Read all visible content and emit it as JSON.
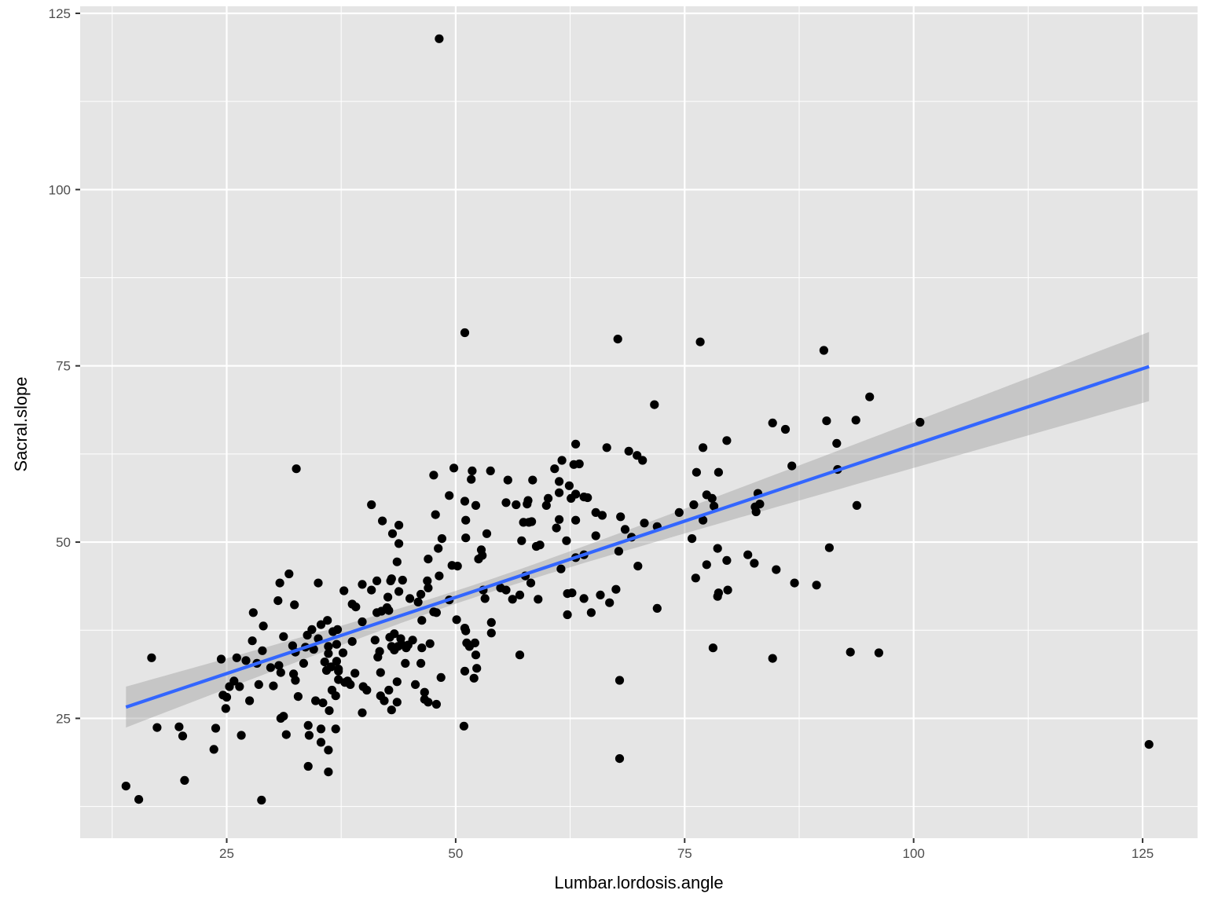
{
  "chart_data": {
    "type": "scatter",
    "title": "",
    "xlabel": "Lumbar.lordosis.angle",
    "ylabel": "Sacral.slope",
    "xlim": [
      9,
      131
    ],
    "ylim": [
      8,
      126
    ],
    "x_ticks": [
      25,
      50,
      75,
      100,
      125
    ],
    "y_ticks": [
      25,
      50,
      75,
      100,
      125
    ],
    "x_tick_labels": [
      "25",
      "50",
      "75",
      "100",
      "125"
    ],
    "y_tick_labels": [
      "25",
      "50",
      "75",
      "100",
      "125"
    ],
    "grid": true,
    "legend": "none",
    "colors": {
      "panel": "#e5e5e5",
      "grid": "#ffffff",
      "point": "#000000",
      "line": "#3366ff",
      "ribbon": "#999999"
    },
    "trend": {
      "method": "linear",
      "x_range": [
        14,
        125.7
      ],
      "y_at_start": 26.6,
      "y_at_end": 74.9,
      "ci_halfwidth_at_start": 2.9,
      "ci_halfwidth_at_end": 4.9,
      "ci_halfwidth_at_center": 0.9,
      "center_x": 52
    },
    "points": [
      [
        48.2,
        121.4
      ],
      [
        51.0,
        79.7
      ],
      [
        67.7,
        78.8
      ],
      [
        76.7,
        78.4
      ],
      [
        90.2,
        77.2
      ],
      [
        95.2,
        70.6
      ],
      [
        71.7,
        69.5
      ],
      [
        93.7,
        67.3
      ],
      [
        90.5,
        67.2
      ],
      [
        100.7,
        67.0
      ],
      [
        84.6,
        66.9
      ],
      [
        86.0,
        66.0
      ],
      [
        91.6,
        64.0
      ],
      [
        79.6,
        64.4
      ],
      [
        63.1,
        63.9
      ],
      [
        66.5,
        63.4
      ],
      [
        77.0,
        63.4
      ],
      [
        68.9,
        62.9
      ],
      [
        69.8,
        62.3
      ],
      [
        61.6,
        61.6
      ],
      [
        70.4,
        61.6
      ],
      [
        63.5,
        61.1
      ],
      [
        62.9,
        61.0
      ],
      [
        86.7,
        60.8
      ],
      [
        32.6,
        60.4
      ],
      [
        49.8,
        60.5
      ],
      [
        60.8,
        60.4
      ],
      [
        91.7,
        60.3
      ],
      [
        51.8,
        60.1
      ],
      [
        53.8,
        60.1
      ],
      [
        78.7,
        59.9
      ],
      [
        76.3,
        59.9
      ],
      [
        47.6,
        59.5
      ],
      [
        51.7,
        58.9
      ],
      [
        55.7,
        58.8
      ],
      [
        58.4,
        58.8
      ],
      [
        61.3,
        58.6
      ],
      [
        62.4,
        58.0
      ],
      [
        61.3,
        57.0
      ],
      [
        83.0,
        56.9
      ],
      [
        49.3,
        56.6
      ],
      [
        62.6,
        56.2
      ],
      [
        63.1,
        56.8
      ],
      [
        64.0,
        56.4
      ],
      [
        64.4,
        56.3
      ],
      [
        77.4,
        56.7
      ],
      [
        78.0,
        56.2
      ],
      [
        51.0,
        55.8
      ],
      [
        55.5,
        55.6
      ],
      [
        57.9,
        55.9
      ],
      [
        60.1,
        56.2
      ],
      [
        56.6,
        55.3
      ],
      [
        57.8,
        55.4
      ],
      [
        59.9,
        55.2
      ],
      [
        40.8,
        55.3
      ],
      [
        52.2,
        55.2
      ],
      [
        76.0,
        55.3
      ],
      [
        78.2,
        55.1
      ],
      [
        83.2,
        55.4
      ],
      [
        82.8,
        54.3
      ],
      [
        93.8,
        55.2
      ],
      [
        82.7,
        55.0
      ],
      [
        74.4,
        54.2
      ],
      [
        65.3,
        54.2
      ],
      [
        66.0,
        53.8
      ],
      [
        68.0,
        53.6
      ],
      [
        61.3,
        53.2
      ],
      [
        63.1,
        53.1
      ],
      [
        77.0,
        53.1
      ],
      [
        47.8,
        53.9
      ],
      [
        51.1,
        53.1
      ],
      [
        42.0,
        53.0
      ],
      [
        43.8,
        52.4
      ],
      [
        57.4,
        52.8
      ],
      [
        58.0,
        52.8
      ],
      [
        58.3,
        52.9
      ],
      [
        61.0,
        52.0
      ],
      [
        70.6,
        52.7
      ],
      [
        72.0,
        52.2
      ],
      [
        68.5,
        51.8
      ],
      [
        43.1,
        51.2
      ],
      [
        53.4,
        51.2
      ],
      [
        48.5,
        50.5
      ],
      [
        51.1,
        50.6
      ],
      [
        57.2,
        50.2
      ],
      [
        62.1,
        50.2
      ],
      [
        65.3,
        50.9
      ],
      [
        69.2,
        50.7
      ],
      [
        75.8,
        50.5
      ],
      [
        43.8,
        49.8
      ],
      [
        48.1,
        49.1
      ],
      [
        52.8,
        48.9
      ],
      [
        52.9,
        48.1
      ],
      [
        58.8,
        49.4
      ],
      [
        59.2,
        49.6
      ],
      [
        67.8,
        48.7
      ],
      [
        90.8,
        49.2
      ],
      [
        78.6,
        49.1
      ],
      [
        52.5,
        47.6
      ],
      [
        64.0,
        48.2
      ],
      [
        63.1,
        47.8
      ],
      [
        81.9,
        48.2
      ],
      [
        47.0,
        47.6
      ],
      [
        79.6,
        47.4
      ],
      [
        43.6,
        47.2
      ],
      [
        49.6,
        46.7
      ],
      [
        50.2,
        46.6
      ],
      [
        61.5,
        46.2
      ],
      [
        69.9,
        46.6
      ],
      [
        77.4,
        46.8
      ],
      [
        82.6,
        47.0
      ],
      [
        85.0,
        46.1
      ],
      [
        31.8,
        45.5
      ],
      [
        48.2,
        45.2
      ],
      [
        43.0,
        44.8
      ],
      [
        42.9,
        44.5
      ],
      [
        44.2,
        44.6
      ],
      [
        41.4,
        44.5
      ],
      [
        39.8,
        44.0
      ],
      [
        30.8,
        44.2
      ],
      [
        35.0,
        44.2
      ],
      [
        46.9,
        44.5
      ],
      [
        53.0,
        43.2
      ],
      [
        54.9,
        43.5
      ],
      [
        55.5,
        43.2
      ],
      [
        57.6,
        45.2
      ],
      [
        58.2,
        44.2
      ],
      [
        67.5,
        43.3
      ],
      [
        76.2,
        44.9
      ],
      [
        79.7,
        43.2
      ],
      [
        87.0,
        44.2
      ],
      [
        89.4,
        43.9
      ],
      [
        37.8,
        43.1
      ],
      [
        40.8,
        43.2
      ],
      [
        43.8,
        43.0
      ],
      [
        47.0,
        43.5
      ],
      [
        42.6,
        42.2
      ],
      [
        45.0,
        42.0
      ],
      [
        46.2,
        42.6
      ],
      [
        53.2,
        42.0
      ],
      [
        56.2,
        41.9
      ],
      [
        57.0,
        42.5
      ],
      [
        59.0,
        41.9
      ],
      [
        62.2,
        42.7
      ],
      [
        62.7,
        42.8
      ],
      [
        64.0,
        42.0
      ],
      [
        65.8,
        42.5
      ],
      [
        78.6,
        42.3
      ],
      [
        78.7,
        42.8
      ],
      [
        30.6,
        41.7
      ],
      [
        32.4,
        41.1
      ],
      [
        38.7,
        41.2
      ],
      [
        39.1,
        40.8
      ],
      [
        42.5,
        40.7
      ],
      [
        41.9,
        40.2
      ],
      [
        45.9,
        41.5
      ],
      [
        49.3,
        41.8
      ],
      [
        66.8,
        41.4
      ],
      [
        72.0,
        40.6
      ],
      [
        27.9,
        40.0
      ],
      [
        41.4,
        40.0
      ],
      [
        42.7,
        40.3
      ],
      [
        47.6,
        40.1
      ],
      [
        47.9,
        40.0
      ],
      [
        62.2,
        39.7
      ],
      [
        64.8,
        40.0
      ],
      [
        39.8,
        38.7
      ],
      [
        46.3,
        38.9
      ],
      [
        50.1,
        39.0
      ],
      [
        53.9,
        38.6
      ],
      [
        29.0,
        38.1
      ],
      [
        34.3,
        37.6
      ],
      [
        35.3,
        38.3
      ],
      [
        36.0,
        38.9
      ],
      [
        37.1,
        37.6
      ],
      [
        33.8,
        36.8
      ],
      [
        35.0,
        36.3
      ],
      [
        36.6,
        37.3
      ],
      [
        42.8,
        36.5
      ],
      [
        44.0,
        36.3
      ],
      [
        45.3,
        36.1
      ],
      [
        51.0,
        37.8
      ],
      [
        51.1,
        37.4
      ],
      [
        53.9,
        37.1
      ],
      [
        43.3,
        37.0
      ],
      [
        27.8,
        36.0
      ],
      [
        31.2,
        36.6
      ],
      [
        32.2,
        35.3
      ],
      [
        36.1,
        35.2
      ],
      [
        37.0,
        35.5
      ],
      [
        38.7,
        35.9
      ],
      [
        41.2,
        36.1
      ],
      [
        43.0,
        35.2
      ],
      [
        43.7,
        35.2
      ],
      [
        44.1,
        35.5
      ],
      [
        44.8,
        35.4
      ],
      [
        46.3,
        35.0
      ],
      [
        47.2,
        35.6
      ],
      [
        51.2,
        35.7
      ],
      [
        51.5,
        35.2
      ],
      [
        52.1,
        35.7
      ],
      [
        78.1,
        35.0
      ],
      [
        32.5,
        34.4
      ],
      [
        33.6,
        35.1
      ],
      [
        28.9,
        34.6
      ],
      [
        34.5,
        34.8
      ],
      [
        36.1,
        34.2
      ],
      [
        37.7,
        34.3
      ],
      [
        41.7,
        34.5
      ],
      [
        43.3,
        34.7
      ],
      [
        44.6,
        35.0
      ],
      [
        57.0,
        34.0
      ],
      [
        52.2,
        34.0
      ],
      [
        93.1,
        34.4
      ],
      [
        96.2,
        34.3
      ],
      [
        16.8,
        33.6
      ],
      [
        24.4,
        33.4
      ],
      [
        26.1,
        33.6
      ],
      [
        27.1,
        33.2
      ],
      [
        28.3,
        32.8
      ],
      [
        29.8,
        32.2
      ],
      [
        30.7,
        32.5
      ],
      [
        33.4,
        32.8
      ],
      [
        35.7,
        33.0
      ],
      [
        37.0,
        33.1
      ],
      [
        36.4,
        32.3
      ],
      [
        35.9,
        31.8
      ],
      [
        37.2,
        32.0
      ],
      [
        44.5,
        32.8
      ],
      [
        41.5,
        33.7
      ],
      [
        46.2,
        32.8
      ],
      [
        52.3,
        32.1
      ],
      [
        84.6,
        33.5
      ],
      [
        30.9,
        31.5
      ],
      [
        32.3,
        31.3
      ],
      [
        37.2,
        31.7
      ],
      [
        39.0,
        31.4
      ],
      [
        41.8,
        31.5
      ],
      [
        51.0,
        31.7
      ],
      [
        25.8,
        30.3
      ],
      [
        32.5,
        30.4
      ],
      [
        37.2,
        30.5
      ],
      [
        38.2,
        30.3
      ],
      [
        43.6,
        30.2
      ],
      [
        48.4,
        30.8
      ],
      [
        52.0,
        30.7
      ],
      [
        67.9,
        30.4
      ],
      [
        25.3,
        29.5
      ],
      [
        26.4,
        29.5
      ],
      [
        28.5,
        29.8
      ],
      [
        30.1,
        29.6
      ],
      [
        36.5,
        29.0
      ],
      [
        38.5,
        29.8
      ],
      [
        39.9,
        29.5
      ],
      [
        40.3,
        29.0
      ],
      [
        42.7,
        29.0
      ],
      [
        45.6,
        29.8
      ],
      [
        46.6,
        28.7
      ],
      [
        37.9,
        30.1
      ],
      [
        24.6,
        28.3
      ],
      [
        25.0,
        28.0
      ],
      [
        27.5,
        27.5
      ],
      [
        32.8,
        28.1
      ],
      [
        34.7,
        27.5
      ],
      [
        35.5,
        27.2
      ],
      [
        36.9,
        28.2
      ],
      [
        41.8,
        28.2
      ],
      [
        42.2,
        27.5
      ],
      [
        43.6,
        27.3
      ],
      [
        46.6,
        27.7
      ],
      [
        47.0,
        27.3
      ],
      [
        47.9,
        27.0
      ],
      [
        24.9,
        26.4
      ],
      [
        36.2,
        26.1
      ],
      [
        39.8,
        25.8
      ],
      [
        43.0,
        26.2
      ],
      [
        31.2,
        25.3
      ],
      [
        30.9,
        25.0
      ],
      [
        33.9,
        24.0
      ],
      [
        35.3,
        23.5
      ],
      [
        36.9,
        23.5
      ],
      [
        17.4,
        23.7
      ],
      [
        19.8,
        23.8
      ],
      [
        20.2,
        22.5
      ],
      [
        23.8,
        23.6
      ],
      [
        26.6,
        22.6
      ],
      [
        31.5,
        22.7
      ],
      [
        34.0,
        22.6
      ],
      [
        35.3,
        21.6
      ],
      [
        23.6,
        20.6
      ],
      [
        36.1,
        20.5
      ],
      [
        50.9,
        23.9
      ],
      [
        67.9,
        19.3
      ],
      [
        125.7,
        21.3
      ],
      [
        33.9,
        18.2
      ],
      [
        36.1,
        17.4
      ],
      [
        20.4,
        16.2
      ],
      [
        14.0,
        15.4
      ],
      [
        15.4,
        13.5
      ],
      [
        28.8,
        13.4
      ]
    ]
  }
}
